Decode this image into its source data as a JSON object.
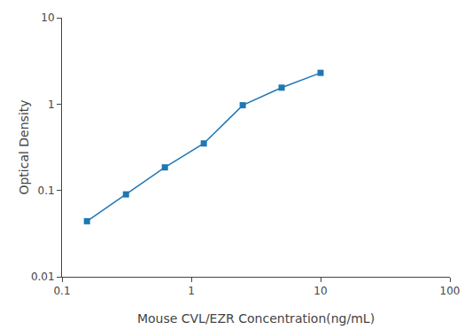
{
  "chart_data": {
    "type": "line",
    "x": [
      0.156,
      0.3125,
      0.625,
      1.25,
      2.5,
      5.0,
      10.0
    ],
    "values": [
      0.044,
      0.09,
      0.185,
      0.35,
      0.97,
      1.55,
      2.3
    ],
    "xlabel": "Mouse CVL/EZR Concentration(ng/mL)",
    "ylabel": "Optical Density",
    "xlim": [
      0.1,
      100
    ],
    "ylim": [
      0.01,
      10
    ],
    "xticks": [
      0.1,
      1,
      10,
      100
    ],
    "yticks": [
      0.01,
      0.1,
      1,
      10
    ],
    "log": true,
    "grid": false,
    "marker": "square"
  }
}
